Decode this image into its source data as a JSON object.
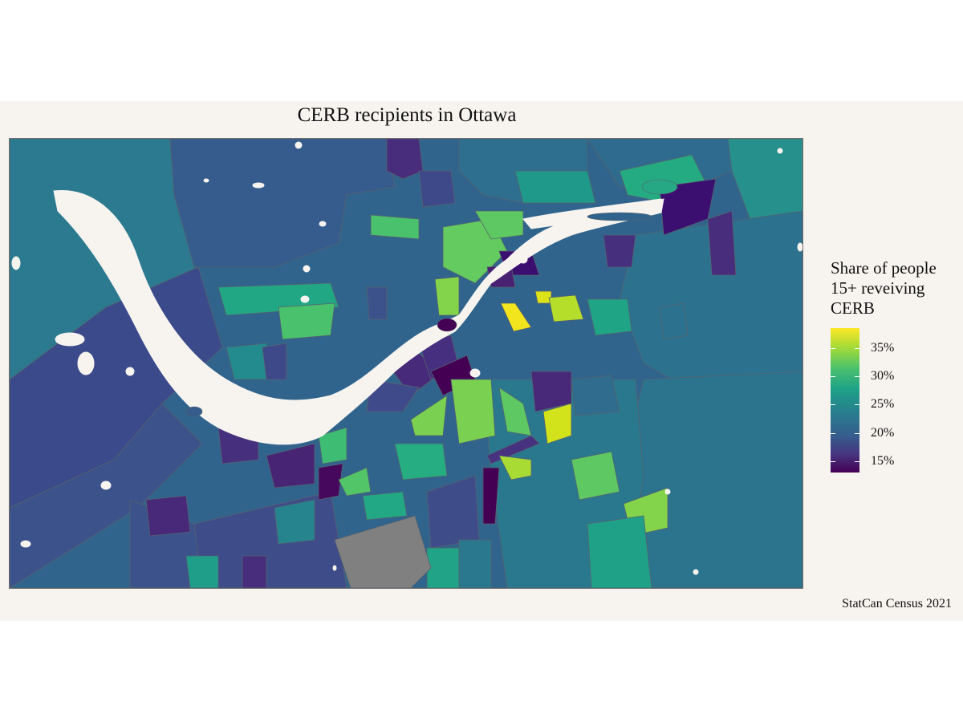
{
  "title": "CERB recipients in Ottawa",
  "legend": {
    "title_lines": [
      "Share of people",
      "15+ reveiving",
      "CERB"
    ],
    "ticks": [
      {
        "label": "35%",
        "value": 35
      },
      {
        "label": "30%",
        "value": 30
      },
      {
        "label": "25%",
        "value": 25
      },
      {
        "label": "20%",
        "value": 20
      },
      {
        "label": "15%",
        "value": 15
      }
    ],
    "range": [
      13,
      38.5
    ],
    "palette": "viridis"
  },
  "caption": "StatCan Census 2021",
  "colors": {
    "background": "#f7f4f0",
    "water": "#f7f4f0",
    "no_data": "#808080",
    "border": "#5a6b78"
  }
}
